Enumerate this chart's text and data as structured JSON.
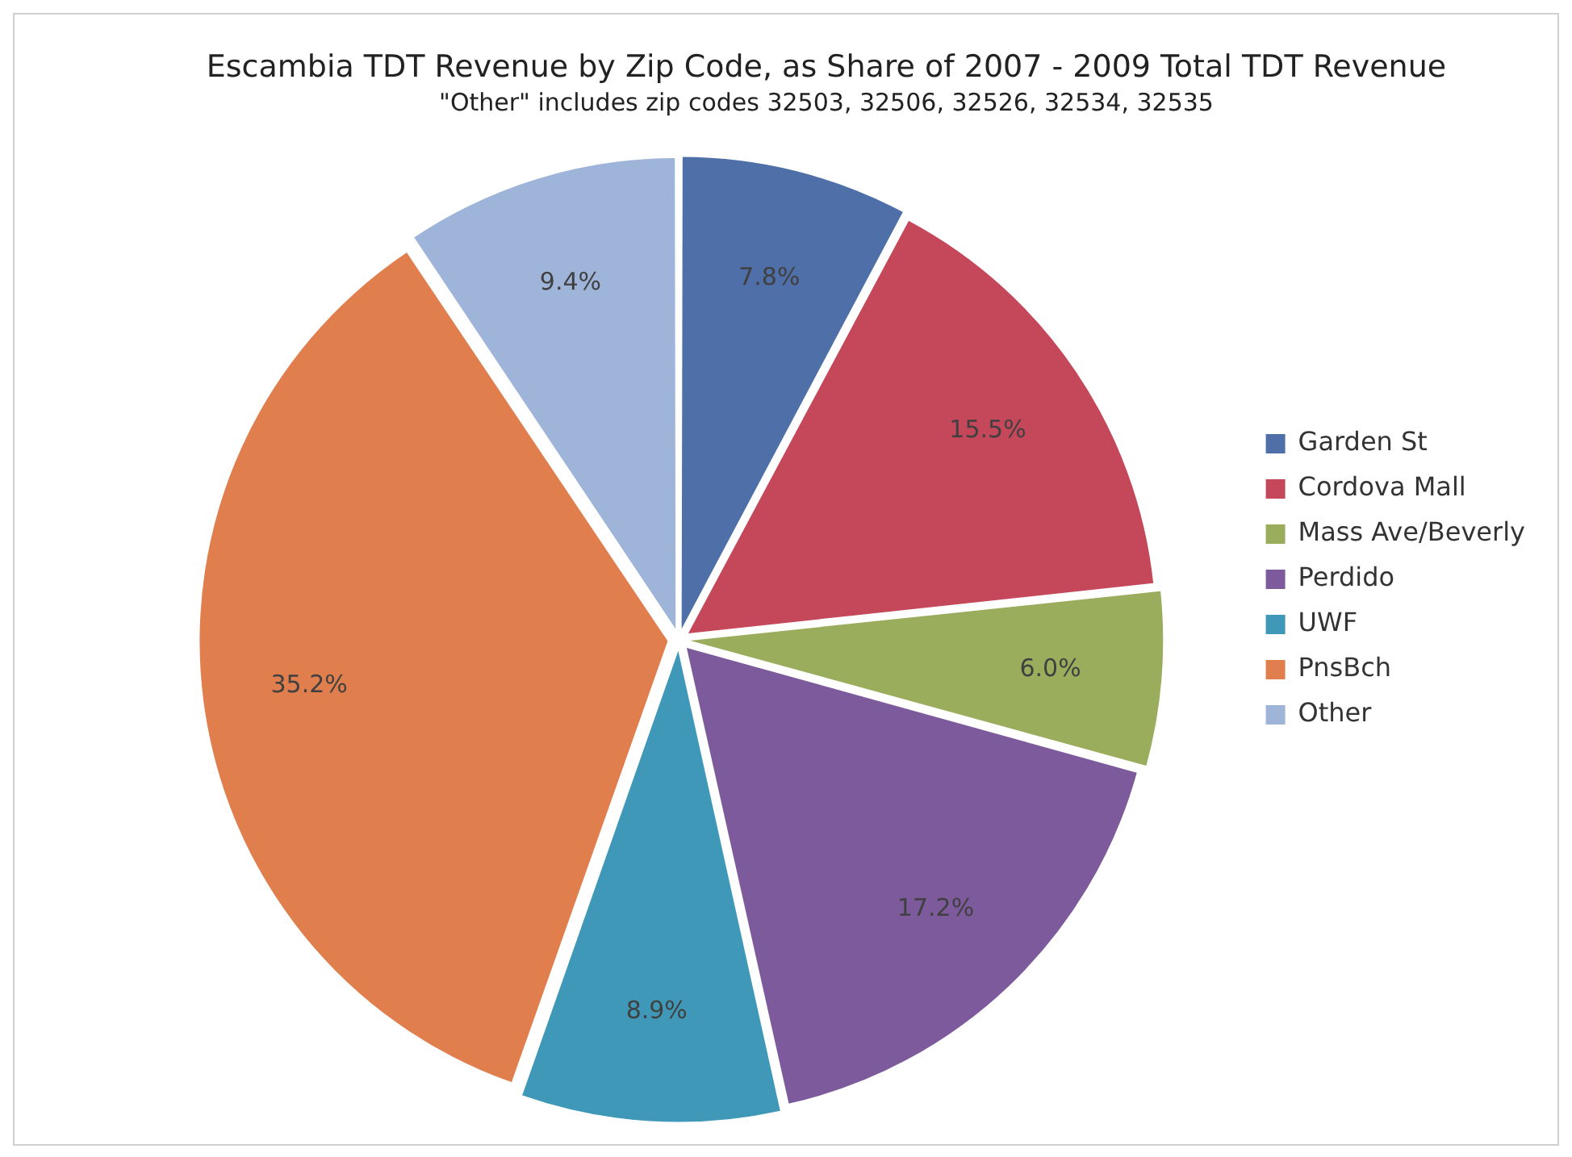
{
  "chart_data": {
    "type": "pie",
    "title": "Escambia TDT Revenue by Zip Code, as Share of 2007 - 2009 Total TDT Revenue",
    "subtitle": "\"Other\" includes zip codes 32503, 32506, 32526, 32534, 32535",
    "categories": [
      "Garden St",
      "Cordova Mall",
      "Mass Ave/Beverly",
      "Perdido",
      "UWF",
      "PnsBch",
      "Other"
    ],
    "values": [
      7.8,
      15.5,
      6.0,
      17.2,
      8.9,
      35.2,
      9.4
    ],
    "colors": [
      "#4f6fa8",
      "#c4485a",
      "#9aad5c",
      "#7d5a9b",
      "#3f98b8",
      "#e07f4d",
      "#9fb4d9"
    ],
    "value_labels": [
      "7.8%",
      "15.5%",
      "6.0%",
      "17.2%",
      "8.9%",
      "35.2%",
      "9.4%"
    ],
    "legend": "right"
  }
}
